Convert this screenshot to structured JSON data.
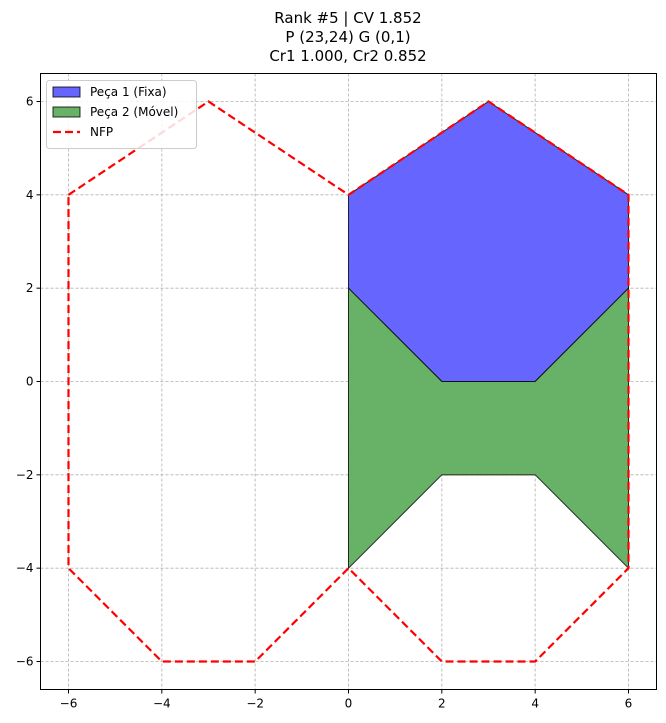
{
  "chart_data": {
    "type": "area",
    "title_lines": [
      "Rank #5 | CV 1.852",
      "P (23,24) G (0,1)",
      "Cr1 1.000, Cr2 0.852"
    ],
    "xlabel": "",
    "ylabel": "",
    "xlim": [
      -6.6,
      6.6
    ],
    "ylim": [
      -6.6,
      6.6
    ],
    "x_ticks": [
      -6,
      -4,
      -2,
      0,
      2,
      4,
      6
    ],
    "y_ticks": [
      -6,
      -4,
      -2,
      0,
      2,
      4,
      6
    ],
    "x_tick_labels": [
      "−6",
      "−4",
      "−2",
      "0",
      "2",
      "4",
      "6"
    ],
    "y_tick_labels": [
      "−6",
      "−4",
      "−2",
      "0",
      "2",
      "4",
      "6"
    ],
    "grid": true,
    "legend_position": "top-left",
    "series": [
      {
        "name": "Peça 1 (Fixa)",
        "kind": "polygon",
        "color": "#6666ff",
        "points": [
          [
            0,
            4
          ],
          [
            3,
            6
          ],
          [
            6,
            4
          ],
          [
            6,
            2
          ],
          [
            4,
            0
          ],
          [
            2,
            0
          ],
          [
            0,
            2
          ]
        ]
      },
      {
        "name": "Peça 2 (Móvel)",
        "kind": "polygon",
        "color": "#67b267",
        "points": [
          [
            0,
            2
          ],
          [
            2,
            0
          ],
          [
            4,
            0
          ],
          [
            6,
            2
          ],
          [
            6,
            -4
          ],
          [
            4,
            -2
          ],
          [
            2,
            -2
          ],
          [
            0,
            -4
          ]
        ]
      },
      {
        "name": "NFP",
        "kind": "dashed-outline",
        "color": "#ff0000",
        "points": [
          [
            -6,
            4
          ],
          [
            -3,
            6
          ],
          [
            0,
            4
          ],
          [
            3,
            6
          ],
          [
            6,
            4
          ],
          [
            6,
            -4
          ],
          [
            4,
            -6
          ],
          [
            2,
            -6
          ],
          [
            0,
            -4
          ],
          [
            -2,
            -6
          ],
          [
            -4,
            -6
          ],
          [
            -6,
            -4
          ]
        ]
      }
    ]
  }
}
